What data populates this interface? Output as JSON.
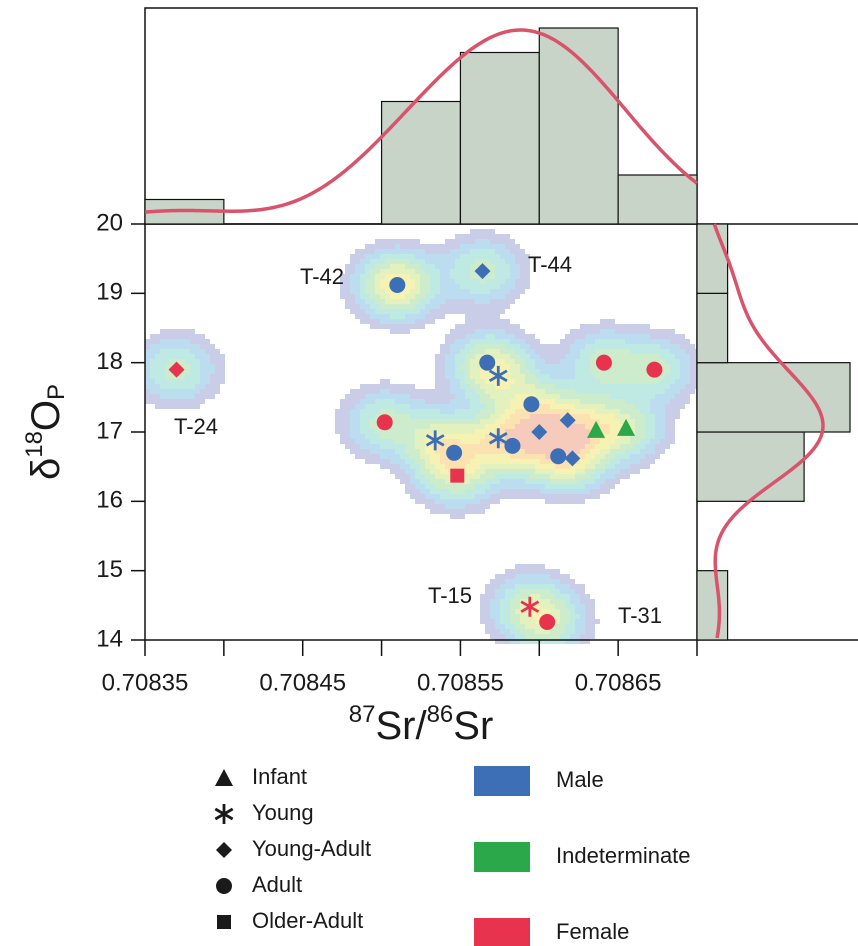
{
  "chart_data": {
    "type": "scatter",
    "xlabel": [
      "87",
      "Sr/",
      "86",
      "Sr"
    ],
    "ylabel": [
      "δ",
      "18",
      "O",
      "P"
    ],
    "xlim": [
      0.70835,
      0.7087
    ],
    "ylim": [
      14,
      20
    ],
    "xticks": [
      0.70835,
      0.70845,
      0.70855,
      0.70865
    ],
    "xminor": [
      0.7084,
      0.7085,
      0.7086,
      0.7087
    ],
    "yticks": [
      14,
      15,
      16,
      17,
      18,
      19,
      20
    ],
    "series": [
      {
        "name": "Male",
        "color": "#3d6fb6",
        "x": [
          0.70851,
          0.70851,
          0.708564,
          0.708567,
          0.708574,
          0.708595,
          0.708618,
          0.7086,
          0.708534,
          0.708574,
          0.708583,
          0.708546,
          0.708612,
          0.708621
        ],
        "y": [
          19.12,
          19.12,
          19.32,
          18.0,
          17.81,
          17.4,
          17.17,
          17.0,
          16.88,
          16.91,
          16.8,
          16.7,
          16.65,
          16.62
        ],
        "markers": [
          "diamond",
          "circle",
          "diamond",
          "circle",
          "asterisk",
          "circle",
          "diamond",
          "diamond",
          "asterisk",
          "asterisk",
          "circle",
          "circle",
          "circle",
          "diamond"
        ]
      },
      {
        "name": "Indeterminate",
        "color": "#2aa84a",
        "x": [
          0.708636,
          0.708655
        ],
        "y": [
          17.03,
          17.06
        ],
        "markers": [
          "triangle",
          "triangle"
        ]
      },
      {
        "name": "Female",
        "color": "#e8334f",
        "x": [
          0.70837,
          0.708641,
          0.708673,
          0.708502,
          0.708548,
          0.708594,
          0.708605
        ],
        "y": [
          17.9,
          18.0,
          17.9,
          17.14,
          16.37,
          14.48,
          14.26
        ],
        "markers": [
          "diamond",
          "circle",
          "circle",
          "circle",
          "square",
          "asterisk",
          "circle"
        ]
      }
    ],
    "age_groups": [
      {
        "name": "Infant",
        "marker": "triangle"
      },
      {
        "name": "Young",
        "marker": "asterisk"
      },
      {
        "name": "Young-Adult",
        "marker": "diamond"
      },
      {
        "name": "Adult",
        "marker": "circle"
      },
      {
        "name": "Older-Adult",
        "marker": "square"
      }
    ],
    "annotations": [
      "T-42",
      "T-44",
      "T-24",
      "T-15",
      "T-31"
    ],
    "x_hist": {
      "bins": [
        0.70835,
        0.7084,
        0.70845,
        0.7085,
        0.70855,
        0.7086,
        0.70865,
        0.7087
      ],
      "counts": [
        1,
        0,
        0,
        5,
        7,
        8,
        2
      ]
    },
    "y_hist": {
      "bins": [
        14,
        15,
        16,
        17,
        18,
        19,
        20
      ],
      "counts": [
        1,
        0,
        3.5,
        5,
        1,
        1
      ]
    },
    "hist_color": "#c8d4c8",
    "kde_color": "#d9536b"
  }
}
